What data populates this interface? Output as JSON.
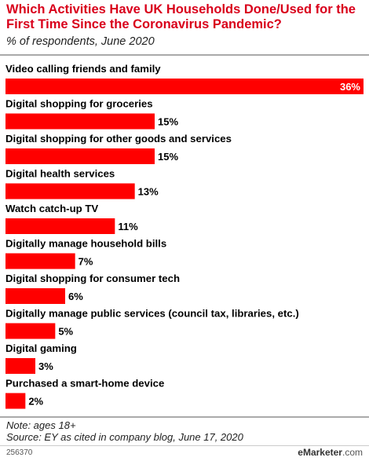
{
  "header": {
    "title": "Which Activities Have UK Households Done/Used for the First Time Since the Coronavirus Pandemic?",
    "subtitle": "% of respondents, June 2020"
  },
  "chart_data": {
    "type": "bar",
    "orientation": "horizontal",
    "categories": [
      "Video calling friends and family",
      "Digital shopping for groceries",
      "Digital shopping for other goods and services",
      "Digital health services",
      "Watch catch-up TV",
      "Digitally manage household bills",
      "Digital shopping for consumer tech",
      "Digitally manage public services (council tax, libraries, etc.)",
      "Digital gaming",
      "Purchased a smart-home device"
    ],
    "values": [
      36,
      15,
      15,
      13,
      11,
      7,
      6,
      5,
      3,
      2
    ],
    "value_labels": [
      "36%",
      "15%",
      "15%",
      "13%",
      "11%",
      "7%",
      "6%",
      "5%",
      "3%",
      "2%"
    ],
    "xlim": [
      0,
      36
    ],
    "bar_color": "#ff0000",
    "grid": false
  },
  "footer": {
    "note": "Note: ages 18+",
    "source": "Source: EY as cited in company blog, June 17, 2020",
    "chart_id": "256370",
    "brand_prefix": "e",
    "brand_name": "Marketer",
    "brand_suffix": ".com"
  }
}
